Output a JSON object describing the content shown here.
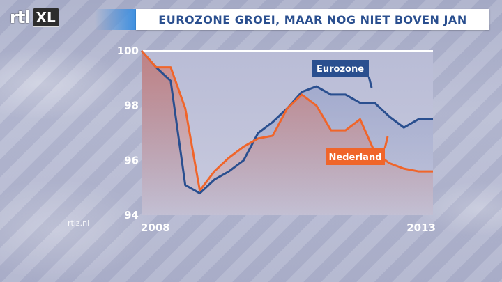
{
  "header": {
    "logo_rtl": "rtl",
    "logo_xl": "XL",
    "title": "EUROZONE GROEI, MAAR NOG NIET BOVEN JAN"
  },
  "watermark": "rtlz.nl",
  "colors": {
    "eurozone": "#2a4f8f",
    "nederland": "#f0652a",
    "title_text": "#2a4f8f"
  },
  "chart_data": {
    "type": "line",
    "title": "EUROZONE GROEI, MAAR NOG NIET BOVEN JAN",
    "xlabel": "",
    "ylabel": "",
    "xlim": [
      2008.0,
      2013.0
    ],
    "ylim": [
      94,
      100
    ],
    "yticks": [
      94,
      96,
      98,
      100
    ],
    "xtick_labels": [
      {
        "x": 2008,
        "label": "2008"
      },
      {
        "x": 2013,
        "label": "2013"
      }
    ],
    "grid": false,
    "series": [
      {
        "name": "Eurozone",
        "color": "#2a4f8f",
        "x": [
          2008.0,
          2008.25,
          2008.5,
          2008.75,
          2009.0,
          2009.25,
          2009.5,
          2009.75,
          2010.0,
          2010.25,
          2010.5,
          2010.75,
          2011.0,
          2011.25,
          2011.5,
          2011.75,
          2012.0,
          2012.25,
          2012.5,
          2012.75,
          2013.0
        ],
        "values": [
          100.0,
          99.4,
          98.9,
          95.1,
          94.8,
          95.3,
          95.6,
          96.0,
          97.0,
          97.4,
          97.9,
          98.5,
          98.7,
          98.4,
          98.4,
          98.1,
          98.1,
          97.6,
          97.2,
          97.5,
          97.5
        ]
      },
      {
        "name": "Nederland",
        "color": "#f0652a",
        "x": [
          2008.0,
          2008.25,
          2008.5,
          2008.75,
          2009.0,
          2009.25,
          2009.5,
          2009.75,
          2010.0,
          2010.25,
          2010.5,
          2010.75,
          2011.0,
          2011.25,
          2011.5,
          2011.75,
          2012.0,
          2012.25,
          2012.5,
          2012.75,
          2013.0
        ],
        "values": [
          100.0,
          99.4,
          99.4,
          97.9,
          94.9,
          95.6,
          96.1,
          96.5,
          96.8,
          96.9,
          97.9,
          98.4,
          98.0,
          97.1,
          97.1,
          97.5,
          96.3,
          95.9,
          95.7,
          95.6,
          95.6
        ]
      }
    ]
  }
}
